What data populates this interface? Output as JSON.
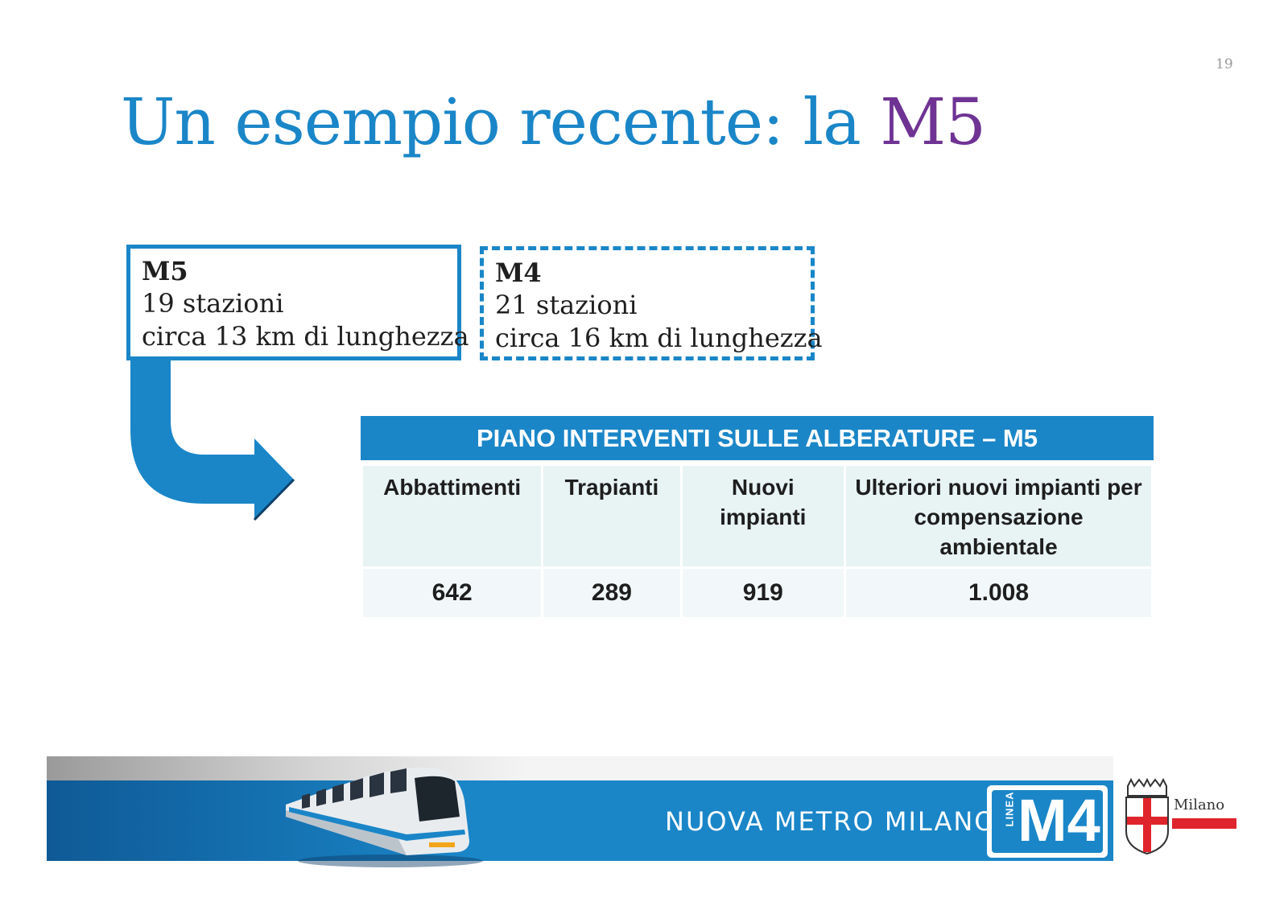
{
  "page_number": "19",
  "title": {
    "text_main": "Un esempio recente: la ",
    "text_accent": "M5"
  },
  "boxes": {
    "m5": {
      "title": "M5",
      "line1": "19 stazioni",
      "line2": "circa 13 km di lunghezza"
    },
    "m4": {
      "title": "M4",
      "line1": "21 stazioni",
      "line2": "circa 16 km di lunghezza"
    }
  },
  "table": {
    "header": "PIANO INTERVENTI SULLE ALBERATURE – M5",
    "columns": [
      "Abbattimenti",
      "Trapianti",
      "Nuovi impianti",
      "Ulteriori nuovi impianti per compensazione ambientale"
    ],
    "values": [
      "642",
      "289",
      "919",
      "1.008"
    ]
  },
  "footer": {
    "banner_text": "NUOVA METRO MILANO",
    "badge_small": "LINEA",
    "badge_big": "M4",
    "city_text": "Milano"
  },
  "colors": {
    "brand_blue": "#1a86c8",
    "accent_purple": "#6f3394",
    "milano_red": "#e0242b"
  }
}
